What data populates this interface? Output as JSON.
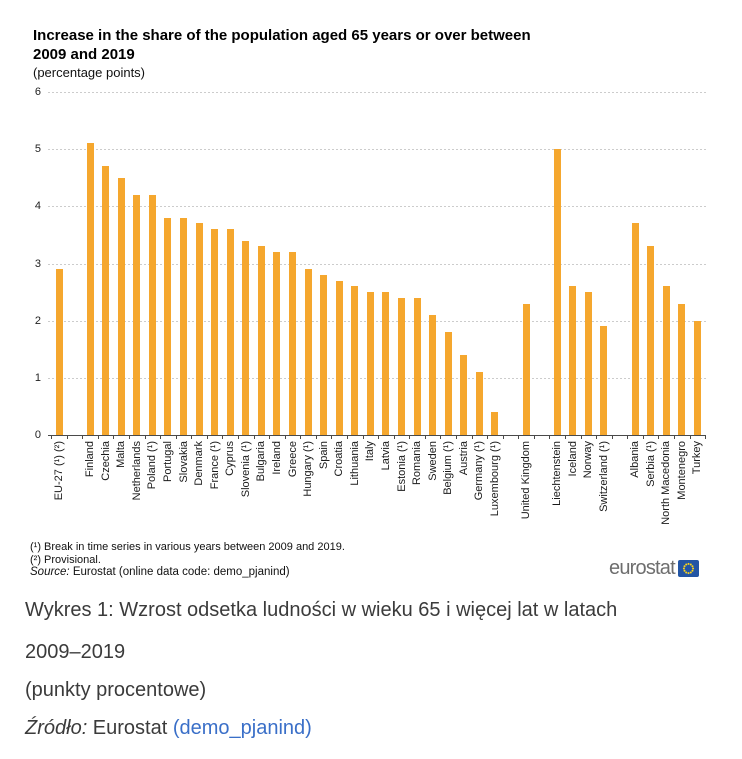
{
  "figure": {
    "title": "Increase in the share of the population aged 65 years or over between 2009 and 2019",
    "subtitle": "(percentage points)",
    "footnote1": "(¹) Break in time series in various years between 2009 and 2019.",
    "footnote2": "(²) Provisional.",
    "source_label": "Source:",
    "source_text": " Eurostat (online data code: demo_pjanind)",
    "logo_text": "eurostat"
  },
  "chart_data": {
    "type": "bar",
    "title": "Increase in the share of the population aged 65 years or over between 2009 and 2019",
    "unit_label": "(percentage points)",
    "ylim": [
      0,
      6
    ],
    "yticks": [
      0,
      1,
      2,
      3,
      4,
      5,
      6
    ],
    "grid": "horizontal dashed",
    "legend": "none",
    "bar_color": "#F5A72E",
    "slots": [
      {
        "label": "EU-27 (¹) (²)",
        "value": 2.9
      },
      null,
      {
        "label": "Finland",
        "value": 5.1
      },
      {
        "label": "Czechia",
        "value": 4.7
      },
      {
        "label": "Malta",
        "value": 4.5
      },
      {
        "label": "Netherlands",
        "value": 4.2
      },
      {
        "label": "Poland (¹)",
        "value": 4.2
      },
      {
        "label": "Portugal",
        "value": 3.8
      },
      {
        "label": "Slovakia",
        "value": 3.8
      },
      {
        "label": "Denmark",
        "value": 3.7
      },
      {
        "label": "France (¹)",
        "value": 3.6
      },
      {
        "label": "Cyprus",
        "value": 3.6
      },
      {
        "label": "Slovenia (¹)",
        "value": 3.4
      },
      {
        "label": "Bulgaria",
        "value": 3.3
      },
      {
        "label": "Ireland",
        "value": 3.2
      },
      {
        "label": "Greece",
        "value": 3.2
      },
      {
        "label": "Hungary (¹)",
        "value": 2.9
      },
      {
        "label": "Spain",
        "value": 2.8
      },
      {
        "label": "Croatia",
        "value": 2.7
      },
      {
        "label": "Lithuania",
        "value": 2.6
      },
      {
        "label": "Italy",
        "value": 2.5
      },
      {
        "label": "Latvia",
        "value": 2.5
      },
      {
        "label": "Estonia (¹)",
        "value": 2.4
      },
      {
        "label": "Romania",
        "value": 2.4
      },
      {
        "label": "Sweden",
        "value": 2.1
      },
      {
        "label": "Belgium (¹)",
        "value": 1.8
      },
      {
        "label": "Austria",
        "value": 1.4
      },
      {
        "label": "Germany (¹)",
        "value": 1.1
      },
      {
        "label": "Luxembourg (¹)",
        "value": 0.4
      },
      null,
      {
        "label": "United Kingdom",
        "value": 2.3
      },
      null,
      {
        "label": "Liechtenstein",
        "value": 5.0
      },
      {
        "label": "Iceland",
        "value": 2.6
      },
      {
        "label": "Norway",
        "value": 2.5
      },
      {
        "label": "Switzerland (¹)",
        "value": 1.9
      },
      null,
      {
        "label": "Albania",
        "value": 3.7
      },
      {
        "label": "Serbia (¹)",
        "value": 3.3
      },
      {
        "label": "North Macedonia",
        "value": 2.6
      },
      {
        "label": "Montenegro",
        "value": 2.3
      },
      {
        "label": "Turkey",
        "value": 2.0
      }
    ]
  },
  "caption": {
    "line1": "Wykres 1: Wzrost odsetka ludności w wieku 65 i więcej lat w latach",
    "line2": "2009–2019",
    "line3": "(punkty procentowe)",
    "source_label": "Źródło:",
    "source_text": " Eurostat ",
    "source_link": "(demo_pjanind)",
    "link_color": "#3a6fc8"
  }
}
